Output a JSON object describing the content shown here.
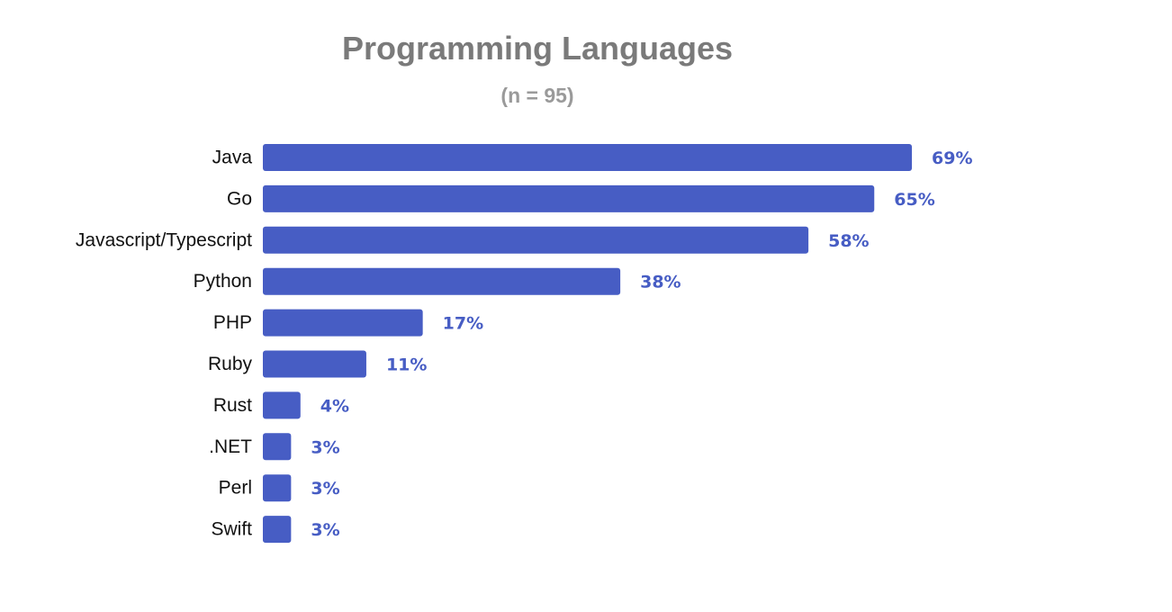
{
  "chart_data": {
    "type": "bar",
    "orientation": "horizontal",
    "title": "Programming Languages",
    "subtitle": "(n = 95)",
    "categories": [
      "Java",
      "Go",
      "Javascript/Typescript",
      "Python",
      "PHP",
      "Ruby",
      "Rust",
      ".NET",
      "Perl",
      "Swift"
    ],
    "values": [
      69,
      65,
      58,
      38,
      17,
      11,
      4,
      3,
      3,
      3
    ],
    "value_labels": [
      "69%",
      "65%",
      "58%",
      "38%",
      "17%",
      "11%",
      "4%",
      "3%",
      "3%",
      "3%"
    ],
    "unit": "%",
    "xlim": [
      0,
      100
    ],
    "grid": false,
    "legend": "none",
    "colors": {
      "bar": "#475dc4",
      "value_label": "#475dc4",
      "category_label": "#111111",
      "title": "#7a7a7a",
      "subtitle": "#9a9a9a"
    }
  }
}
